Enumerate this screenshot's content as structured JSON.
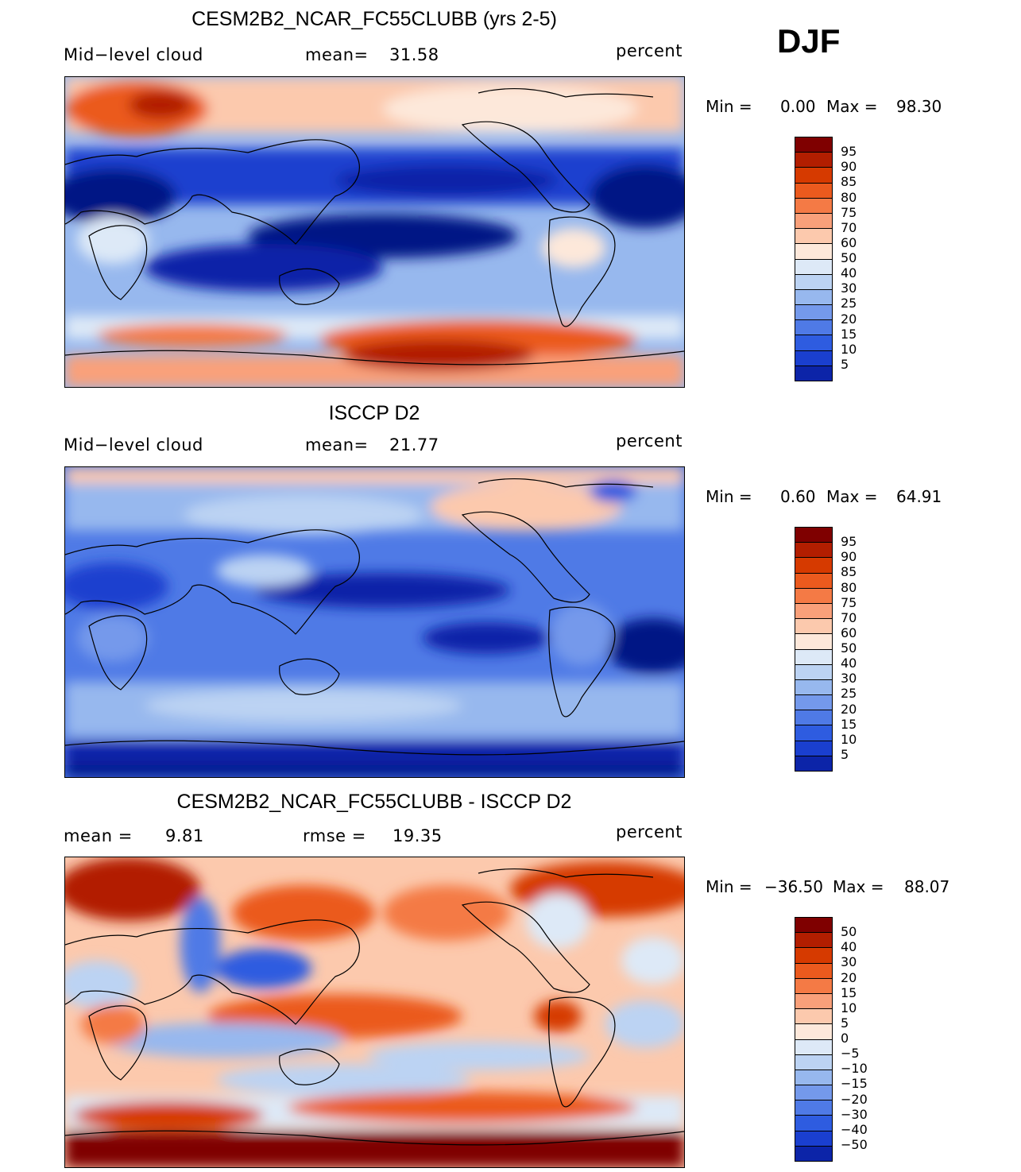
{
  "season": "DJF",
  "panels": [
    {
      "title": "CESM2B2_NCAR_FC55CLUBB (yrs 2-5)",
      "left_label": "Mid−level cloud",
      "stat1_label": "mean=",
      "stat1_value": "31.58",
      "units": "percent",
      "min_label": "Min =",
      "min_value": "0.00",
      "max_label": "Max =",
      "max_value": "98.30",
      "colorbar_labels": [
        "95",
        "90",
        "85",
        "80",
        "75",
        "70",
        "60",
        "50",
        "40",
        "30",
        "25",
        "20",
        "15",
        "10",
        "5"
      ]
    },
    {
      "title": "ISCCP D2",
      "left_label": "Mid−level cloud",
      "stat1_label": "mean=",
      "stat1_value": "21.77",
      "units": "percent",
      "min_label": "Min =",
      "min_value": "0.60",
      "max_label": "Max =",
      "max_value": "64.91",
      "colorbar_labels": [
        "95",
        "90",
        "85",
        "80",
        "75",
        "70",
        "60",
        "50",
        "40",
        "30",
        "25",
        "20",
        "15",
        "10",
        "5"
      ]
    },
    {
      "title": "CESM2B2_NCAR_FC55CLUBB - ISCCP D2",
      "left_label": "mean =",
      "left_value": "9.81",
      "stat1_label": "rmse =",
      "stat1_value": "19.35",
      "units": "percent",
      "min_label": "Min =",
      "min_value": "−36.50",
      "max_label": "Max =",
      "max_value": "88.07",
      "colorbar_labels": [
        "50",
        "40",
        "30",
        "20",
        "15",
        "10",
        "5",
        "0",
        "−5",
        "−10",
        "−15",
        "−20",
        "−30",
        "−40",
        "−50"
      ]
    }
  ],
  "colors": {
    "scale": [
      "#7f0000",
      "#b21e00",
      "#d63a00",
      "#eb5a1e",
      "#f47a45",
      "#f9a07a",
      "#fcc9ad",
      "#fde8da",
      "#dde9f7",
      "#bcd3f3",
      "#97b8ee",
      "#7499eb",
      "#4f7ae6",
      "#2e5ce0",
      "#1a3fcf",
      "#0c24a8",
      "#021485"
    ],
    "land_outline": "#000000"
  }
}
